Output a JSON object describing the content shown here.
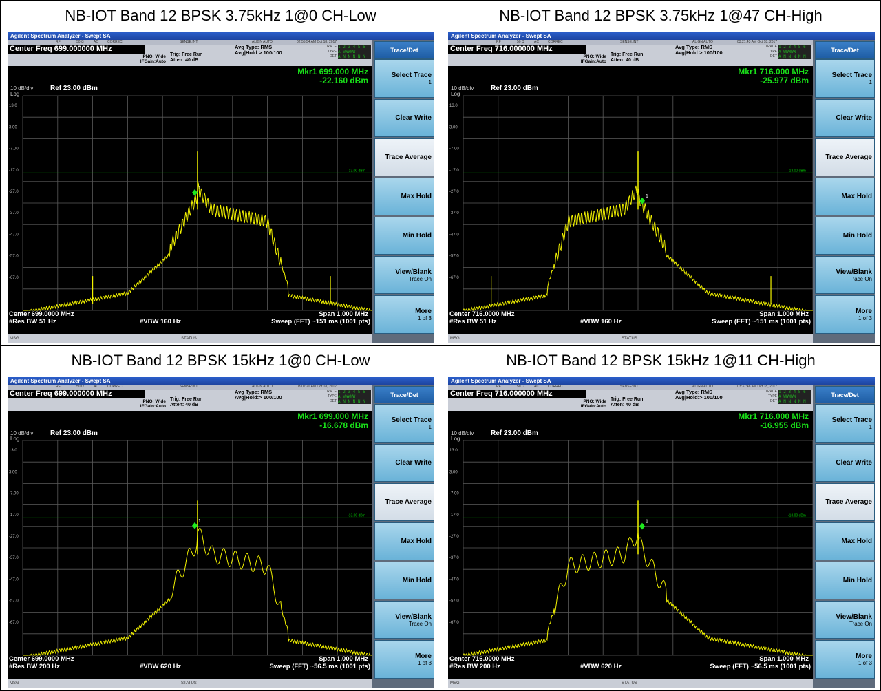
{
  "app_title": "Agilent Spectrum Analyzer - Swept SA",
  "common": {
    "menu_items": [
      "RF",
      "50 Ω",
      "AC",
      "CORREC",
      "SENSE:INT",
      "ALIGN AUTO"
    ],
    "pno": "PNO: Wide",
    "ifgain": "IFGain:Auto",
    "trig": "Trig: Free Run",
    "atten": "Atten: 40 dB",
    "avg_type": "Avg Type: RMS",
    "avg_hold": "Avg|Hold:> 100/100",
    "trace_label": "TRACE",
    "type_label": "TYPE",
    "det_label": "DET",
    "trace_row": "1 2 3 4 5 6",
    "type_row": "A WWWWW",
    "det_row": "A N N N N N",
    "scale": "10 dB/div",
    "log": "Log",
    "ref": "Ref 23.00 dBm",
    "span": "Span 1.000 MHz",
    "msg": "MSG",
    "status": "STATUS",
    "marker_tag": "1",
    "limit_label": "-13.00 dBm",
    "yticks": [
      "13.0",
      "3.00",
      "-7.00",
      "-17.0",
      "-27.0",
      "-37.0",
      "-47.0",
      "-57.0",
      "-67.0"
    ],
    "softkeys": [
      {
        "label": "Trace/Det",
        "sub": ""
      },
      {
        "label": "Select Trace",
        "sub": "1"
      },
      {
        "label": "Clear Write",
        "sub": ""
      },
      {
        "label": "Trace Average",
        "sub": ""
      },
      {
        "label": "Max Hold",
        "sub": ""
      },
      {
        "label": "Min Hold",
        "sub": ""
      },
      {
        "label": "View/Blank",
        "sub": "Trace On"
      },
      {
        "label": "More",
        "sub": "1 of 3"
      }
    ]
  },
  "panels": [
    {
      "title": "NB-IOT Band 12 BPSK 3.75kHz 1@0 CH-Low",
      "timestamp": "02:55:54 AM Oct 18, 2017",
      "center_freq": "Center Freq 699.000000 MHz",
      "mkr_freq": "Mkr1 699.000 MHz",
      "mkr_level": "-22.160 dBm",
      "center": "Center 699.0000 MHz",
      "res_bw": "#Res BW 51 Hz",
      "vbw": "#VBW 160 Hz",
      "sweep": "Sweep (FFT)  ~151 ms (1001 pts)",
      "shape": "low",
      "step": "small"
    },
    {
      "title": "NB-IOT Band 12 BPSK 3.75kHz 1@47 CH-High",
      "timestamp": "03:21:43 AM Oct 18, 2017",
      "center_freq": "Center Freq 716.000000 MHz",
      "mkr_freq": "Mkr1 716.000 MHz",
      "mkr_level": "-25.977 dBm",
      "center": "Center 716.0000 MHz",
      "res_bw": "#Res BW 51 Hz",
      "vbw": "#VBW 160 Hz",
      "sweep": "Sweep (FFT)  ~151 ms (1001 pts)",
      "shape": "high",
      "step": "small"
    },
    {
      "title": "NB-IOT Band 12 BPSK 15kHz 1@0 CH-Low",
      "timestamp": "03:02:20 AM Oct 18, 2017",
      "center_freq": "Center Freq 699.000000 MHz",
      "mkr_freq": "Mkr1 699.000 MHz",
      "mkr_level": "-16.678 dBm",
      "center": "Center 699.0000 MHz",
      "res_bw": "#Res BW 200 Hz",
      "vbw": "#VBW 620 Hz",
      "sweep": "Sweep (FFT)  ~56.5 ms (1001 pts)",
      "shape": "low",
      "step": "large"
    },
    {
      "title": "NB-IOT Band 12 BPSK 15kHz 1@11 CH-High",
      "timestamp": "03:37:46 AM Oct 18, 2017",
      "center_freq": "Center Freq 716.000000 MHz",
      "mkr_freq": "Mkr1 716.000 MHz",
      "mkr_level": "-16.955 dBm",
      "center": "Center 716.0000 MHz",
      "res_bw": "#Res BW 200 Hz",
      "vbw": "#VBW 620 Hz",
      "sweep": "Sweep (FFT)  ~56.5 ms (1001 pts)",
      "shape": "high",
      "step": "large"
    }
  ]
}
